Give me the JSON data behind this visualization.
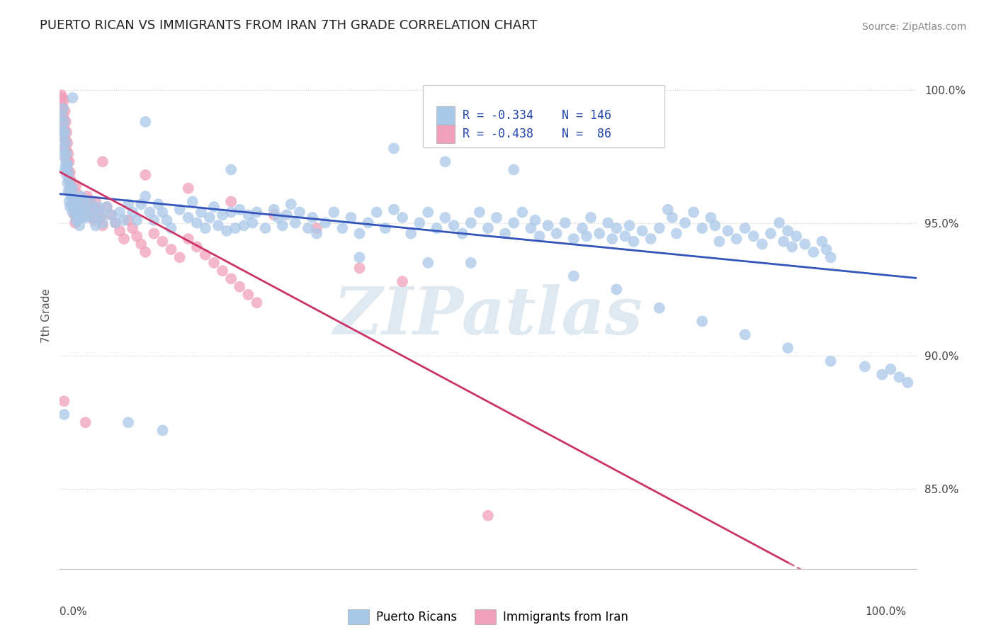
{
  "title": "PUERTO RICAN VS IMMIGRANTS FROM IRAN 7TH GRADE CORRELATION CHART",
  "source_text": "Source: ZipAtlas.com",
  "ylabel": "7th Grade",
  "watermark": "ZIPatlas",
  "legend_r1": "-0.334",
  "legend_n1": "146",
  "legend_r2": "-0.438",
  "legend_n2": " 86",
  "legend_label1": "Puerto Ricans",
  "legend_label2": "Immigrants from Iran",
  "blue_color": "#a8c8e8",
  "pink_color": "#f0a0b8",
  "blue_line_color": "#3355bb",
  "pink_line_color": "#cc3366",
  "blue_scatter": [
    [
      0.002,
      0.99
    ],
    [
      0.003,
      0.985
    ],
    [
      0.003,
      0.978
    ],
    [
      0.004,
      0.993
    ],
    [
      0.004,
      0.982
    ],
    [
      0.005,
      0.988
    ],
    [
      0.005,
      0.975
    ],
    [
      0.006,
      0.984
    ],
    [
      0.006,
      0.97
    ],
    [
      0.007,
      0.98
    ],
    [
      0.007,
      0.972
    ],
    [
      0.008,
      0.976
    ],
    [
      0.008,
      0.968
    ],
    [
      0.009,
      0.972
    ],
    [
      0.009,
      0.965
    ],
    [
      0.01,
      0.969
    ],
    [
      0.01,
      0.962
    ],
    [
      0.011,
      0.966
    ],
    [
      0.011,
      0.958
    ],
    [
      0.012,
      0.963
    ],
    [
      0.012,
      0.956
    ],
    [
      0.013,
      0.96
    ],
    [
      0.014,
      0.957
    ],
    [
      0.015,
      0.963
    ],
    [
      0.015,
      0.954
    ],
    [
      0.016,
      0.96
    ],
    [
      0.017,
      0.957
    ],
    [
      0.018,
      0.954
    ],
    [
      0.019,
      0.951
    ],
    [
      0.02,
      0.958
    ],
    [
      0.021,
      0.955
    ],
    [
      0.022,
      0.952
    ],
    [
      0.023,
      0.949
    ],
    [
      0.025,
      0.96
    ],
    [
      0.025,
      0.955
    ],
    [
      0.027,
      0.952
    ],
    [
      0.028,
      0.958
    ],
    [
      0.03,
      0.955
    ],
    [
      0.032,
      0.952
    ],
    [
      0.035,
      0.958
    ],
    [
      0.038,
      0.955
    ],
    [
      0.04,
      0.952
    ],
    [
      0.042,
      0.949
    ],
    [
      0.045,
      0.956
    ],
    [
      0.048,
      0.953
    ],
    [
      0.05,
      0.95
    ],
    [
      0.055,
      0.956
    ],
    [
      0.06,
      0.953
    ],
    [
      0.065,
      0.95
    ],
    [
      0.07,
      0.954
    ],
    [
      0.075,
      0.951
    ],
    [
      0.08,
      0.957
    ],
    [
      0.085,
      0.954
    ],
    [
      0.09,
      0.951
    ],
    [
      0.095,
      0.957
    ],
    [
      0.1,
      0.96
    ],
    [
      0.105,
      0.954
    ],
    [
      0.11,
      0.951
    ],
    [
      0.115,
      0.957
    ],
    [
      0.12,
      0.954
    ],
    [
      0.125,
      0.951
    ],
    [
      0.13,
      0.948
    ],
    [
      0.14,
      0.955
    ],
    [
      0.15,
      0.952
    ],
    [
      0.155,
      0.958
    ],
    [
      0.16,
      0.95
    ],
    [
      0.165,
      0.954
    ],
    [
      0.17,
      0.948
    ],
    [
      0.175,
      0.952
    ],
    [
      0.18,
      0.956
    ],
    [
      0.185,
      0.949
    ],
    [
      0.19,
      0.953
    ],
    [
      0.195,
      0.947
    ],
    [
      0.2,
      0.954
    ],
    [
      0.205,
      0.948
    ],
    [
      0.21,
      0.955
    ],
    [
      0.215,
      0.949
    ],
    [
      0.22,
      0.953
    ],
    [
      0.225,
      0.95
    ],
    [
      0.23,
      0.954
    ],
    [
      0.24,
      0.948
    ],
    [
      0.25,
      0.955
    ],
    [
      0.255,
      0.952
    ],
    [
      0.26,
      0.949
    ],
    [
      0.265,
      0.953
    ],
    [
      0.27,
      0.957
    ],
    [
      0.275,
      0.95
    ],
    [
      0.28,
      0.954
    ],
    [
      0.29,
      0.948
    ],
    [
      0.295,
      0.952
    ],
    [
      0.3,
      0.946
    ],
    [
      0.31,
      0.95
    ],
    [
      0.32,
      0.954
    ],
    [
      0.33,
      0.948
    ],
    [
      0.34,
      0.952
    ],
    [
      0.35,
      0.946
    ],
    [
      0.36,
      0.95
    ],
    [
      0.37,
      0.954
    ],
    [
      0.38,
      0.948
    ],
    [
      0.39,
      0.955
    ],
    [
      0.4,
      0.952
    ],
    [
      0.41,
      0.946
    ],
    [
      0.42,
      0.95
    ],
    [
      0.43,
      0.954
    ],
    [
      0.44,
      0.948
    ],
    [
      0.45,
      0.952
    ],
    [
      0.46,
      0.949
    ],
    [
      0.47,
      0.946
    ],
    [
      0.48,
      0.95
    ],
    [
      0.49,
      0.954
    ],
    [
      0.5,
      0.948
    ],
    [
      0.51,
      0.952
    ],
    [
      0.52,
      0.946
    ],
    [
      0.53,
      0.95
    ],
    [
      0.54,
      0.954
    ],
    [
      0.55,
      0.948
    ],
    [
      0.555,
      0.951
    ],
    [
      0.56,
      0.945
    ],
    [
      0.57,
      0.949
    ],
    [
      0.58,
      0.946
    ],
    [
      0.59,
      0.95
    ],
    [
      0.6,
      0.944
    ],
    [
      0.61,
      0.948
    ],
    [
      0.615,
      0.945
    ],
    [
      0.62,
      0.952
    ],
    [
      0.63,
      0.946
    ],
    [
      0.64,
      0.95
    ],
    [
      0.645,
      0.944
    ],
    [
      0.65,
      0.948
    ],
    [
      0.66,
      0.945
    ],
    [
      0.665,
      0.949
    ],
    [
      0.67,
      0.943
    ],
    [
      0.68,
      0.947
    ],
    [
      0.69,
      0.944
    ],
    [
      0.7,
      0.948
    ],
    [
      0.71,
      0.955
    ],
    [
      0.715,
      0.952
    ],
    [
      0.72,
      0.946
    ],
    [
      0.73,
      0.95
    ],
    [
      0.74,
      0.954
    ],
    [
      0.75,
      0.948
    ],
    [
      0.76,
      0.952
    ],
    [
      0.765,
      0.949
    ],
    [
      0.77,
      0.943
    ],
    [
      0.78,
      0.947
    ],
    [
      0.79,
      0.944
    ],
    [
      0.8,
      0.948
    ],
    [
      0.81,
      0.945
    ],
    [
      0.82,
      0.942
    ],
    [
      0.83,
      0.946
    ],
    [
      0.84,
      0.95
    ],
    [
      0.845,
      0.943
    ],
    [
      0.85,
      0.947
    ],
    [
      0.855,
      0.941
    ],
    [
      0.86,
      0.945
    ],
    [
      0.87,
      0.942
    ],
    [
      0.88,
      0.939
    ],
    [
      0.89,
      0.943
    ],
    [
      0.895,
      0.94
    ],
    [
      0.9,
      0.937
    ],
    [
      0.45,
      0.973
    ],
    [
      0.53,
      0.97
    ],
    [
      0.39,
      0.978
    ],
    [
      0.1,
      0.988
    ],
    [
      0.2,
      0.97
    ],
    [
      0.015,
      0.997
    ],
    [
      0.35,
      0.937
    ],
    [
      0.43,
      0.935
    ],
    [
      0.48,
      0.935
    ],
    [
      0.6,
      0.93
    ],
    [
      0.65,
      0.925
    ],
    [
      0.7,
      0.918
    ],
    [
      0.75,
      0.913
    ],
    [
      0.8,
      0.908
    ],
    [
      0.85,
      0.903
    ],
    [
      0.9,
      0.898
    ],
    [
      0.94,
      0.896
    ],
    [
      0.96,
      0.893
    ],
    [
      0.97,
      0.895
    ],
    [
      0.98,
      0.892
    ],
    [
      0.99,
      0.89
    ],
    [
      0.005,
      0.878
    ],
    [
      0.08,
      0.875
    ],
    [
      0.12,
      0.872
    ]
  ],
  "pink_scatter": [
    [
      0.002,
      0.998
    ],
    [
      0.002,
      0.994
    ],
    [
      0.003,
      0.997
    ],
    [
      0.003,
      0.99
    ],
    [
      0.004,
      0.993
    ],
    [
      0.004,
      0.986
    ],
    [
      0.005,
      0.996
    ],
    [
      0.005,
      0.989
    ],
    [
      0.005,
      0.982
    ],
    [
      0.006,
      0.992
    ],
    [
      0.006,
      0.985
    ],
    [
      0.006,
      0.978
    ],
    [
      0.007,
      0.988
    ],
    [
      0.007,
      0.981
    ],
    [
      0.007,
      0.974
    ],
    [
      0.008,
      0.984
    ],
    [
      0.008,
      0.977
    ],
    [
      0.008,
      0.97
    ],
    [
      0.009,
      0.98
    ],
    [
      0.009,
      0.973
    ],
    [
      0.01,
      0.976
    ],
    [
      0.01,
      0.969
    ],
    [
      0.011,
      0.973
    ],
    [
      0.011,
      0.966
    ],
    [
      0.012,
      0.969
    ],
    [
      0.012,
      0.962
    ],
    [
      0.013,
      0.966
    ],
    [
      0.014,
      0.963
    ],
    [
      0.015,
      0.959
    ],
    [
      0.016,
      0.956
    ],
    [
      0.017,
      0.953
    ],
    [
      0.018,
      0.95
    ],
    [
      0.019,
      0.964
    ],
    [
      0.02,
      0.961
    ],
    [
      0.021,
      0.958
    ],
    [
      0.022,
      0.955
    ],
    [
      0.023,
      0.952
    ],
    [
      0.025,
      0.959
    ],
    [
      0.027,
      0.956
    ],
    [
      0.03,
      0.953
    ],
    [
      0.032,
      0.96
    ],
    [
      0.035,
      0.957
    ],
    [
      0.038,
      0.954
    ],
    [
      0.04,
      0.951
    ],
    [
      0.042,
      0.958
    ],
    [
      0.045,
      0.955
    ],
    [
      0.048,
      0.952
    ],
    [
      0.05,
      0.949
    ],
    [
      0.055,
      0.956
    ],
    [
      0.06,
      0.953
    ],
    [
      0.065,
      0.95
    ],
    [
      0.07,
      0.947
    ],
    [
      0.075,
      0.944
    ],
    [
      0.08,
      0.951
    ],
    [
      0.085,
      0.948
    ],
    [
      0.09,
      0.945
    ],
    [
      0.095,
      0.942
    ],
    [
      0.1,
      0.939
    ],
    [
      0.11,
      0.946
    ],
    [
      0.12,
      0.943
    ],
    [
      0.13,
      0.94
    ],
    [
      0.14,
      0.937
    ],
    [
      0.15,
      0.944
    ],
    [
      0.16,
      0.941
    ],
    [
      0.17,
      0.938
    ],
    [
      0.18,
      0.935
    ],
    [
      0.19,
      0.932
    ],
    [
      0.2,
      0.929
    ],
    [
      0.21,
      0.926
    ],
    [
      0.22,
      0.923
    ],
    [
      0.23,
      0.92
    ],
    [
      0.05,
      0.973
    ],
    [
      0.1,
      0.968
    ],
    [
      0.15,
      0.963
    ],
    [
      0.2,
      0.958
    ],
    [
      0.25,
      0.953
    ],
    [
      0.3,
      0.948
    ],
    [
      0.35,
      0.933
    ],
    [
      0.4,
      0.928
    ],
    [
      0.005,
      0.883
    ],
    [
      0.03,
      0.875
    ],
    [
      0.5,
      0.84
    ]
  ],
  "y_ticks": [
    0.85,
    0.9,
    0.95,
    1.0
  ],
  "y_tick_labels": [
    "85.0%",
    "90.0%",
    "95.0%",
    "100.0%"
  ],
  "ylim": [
    0.82,
    1.01
  ],
  "xlim": [
    0.0,
    1.0
  ],
  "background_color": "#ffffff",
  "grid_color": "#cccccc",
  "title_fontsize": 13,
  "source_fontsize": 10,
  "watermark_color": "#b8cfe0",
  "watermark_alpha": 0.45
}
